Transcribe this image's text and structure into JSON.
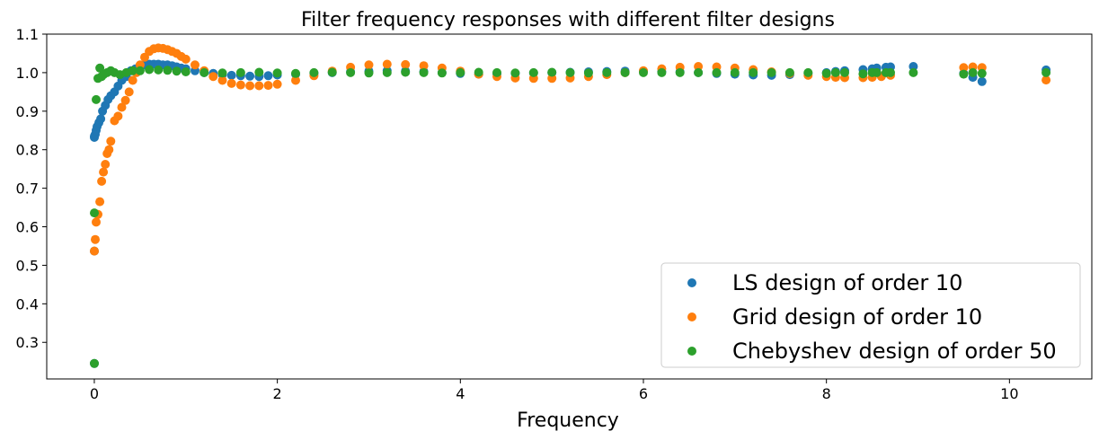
{
  "chart_data": {
    "type": "scatter",
    "title": "Filter frequency responses with different filter designs",
    "xlabel": "Frequency",
    "ylabel": "",
    "xlim": [
      -0.52,
      10.9
    ],
    "ylim": [
      0.205,
      1.1
    ],
    "xticks": [
      0,
      2,
      4,
      6,
      8,
      10
    ],
    "yticks": [
      0.3,
      0.4,
      0.5,
      0.6,
      0.7,
      0.8,
      0.9,
      1.0,
      1.1
    ],
    "xtick_labels": [
      "0",
      "2",
      "4",
      "6",
      "8",
      "10"
    ],
    "ytick_labels": [
      "0.3",
      "0.4",
      "0.5",
      "0.6",
      "0.7",
      "0.8",
      "0.9",
      "1.0",
      "1.1"
    ],
    "grid": false,
    "legend_position": "lower-right",
    "series": [
      {
        "name": "LS design of order 10",
        "color": "#1f77b4",
        "x": [
          0,
          0,
          0,
          0,
          0.01,
          0.02,
          0.03,
          0.05,
          0.07,
          0.09,
          0.12,
          0.15,
          0.18,
          0.22,
          0.26,
          0.3,
          0.35,
          0.4,
          0.45,
          0.5,
          0.55,
          0.6,
          0.65,
          0.7,
          0.75,
          0.8,
          0.85,
          0.9,
          0.95,
          1.0,
          1.1,
          1.2,
          1.3,
          1.4,
          1.5,
          1.6,
          1.7,
          1.8,
          1.9,
          2.0,
          2.2,
          2.4,
          2.6,
          2.8,
          3.0,
          3.2,
          3.4,
          3.6,
          3.8,
          4.0,
          4.2,
          4.4,
          4.6,
          4.8,
          5.0,
          5.2,
          5.4,
          5.6,
          5.8,
          6.0,
          6.2,
          6.4,
          6.6,
          6.8,
          7.0,
          7.2,
          7.4,
          7.6,
          7.8,
          8.0,
          8.1,
          8.2,
          8.4,
          8.5,
          8.55,
          8.65,
          8.7,
          8.95,
          9.5,
          9.6,
          9.7,
          10.4
        ],
        "y": [
          0.245,
          0.537,
          0.832,
          0.835,
          0.84,
          0.85,
          0.86,
          0.87,
          0.88,
          0.9,
          0.915,
          0.93,
          0.94,
          0.95,
          0.965,
          0.98,
          0.99,
          1.005,
          1.01,
          1.015,
          1.02,
          1.022,
          1.022,
          1.022,
          1.02,
          1.02,
          1.018,
          1.015,
          1.012,
          1.01,
          1.005,
          1.0,
          0.998,
          0.995,
          0.993,
          0.992,
          0.991,
          0.99,
          0.992,
          0.994,
          0.996,
          0.998,
          1.0,
          1.002,
          1.004,
          1.005,
          1.004,
          1.003,
          1.0,
          0.998,
          0.996,
          0.997,
          0.998,
          0.999,
          1.0,
          1.001,
          1.002,
          1.003,
          1.004,
          1.004,
          1.003,
          1.002,
          1.0,
          0.998,
          0.996,
          0.994,
          0.993,
          0.995,
          0.998,
          1.0,
          1.003,
          1.005,
          1.008,
          1.01,
          1.012,
          1.014,
          1.015,
          1.016,
          0.998,
          0.988,
          0.977,
          1.007
        ]
      },
      {
        "name": "Grid design of order 10",
        "color": "#ff7f0e",
        "x": [
          0,
          0.01,
          0.02,
          0.04,
          0.06,
          0.08,
          0.1,
          0.12,
          0.14,
          0.16,
          0.18,
          0.22,
          0.26,
          0.3,
          0.34,
          0.38,
          0.42,
          0.46,
          0.5,
          0.55,
          0.6,
          0.65,
          0.7,
          0.75,
          0.8,
          0.85,
          0.9,
          0.95,
          1.0,
          1.1,
          1.2,
          1.3,
          1.4,
          1.5,
          1.6,
          1.7,
          1.8,
          1.9,
          2.0,
          2.2,
          2.4,
          2.6,
          2.8,
          3.0,
          3.2,
          3.4,
          3.6,
          3.8,
          4.0,
          4.2,
          4.4,
          4.6,
          4.8,
          5.0,
          5.2,
          5.4,
          5.6,
          5.8,
          6.0,
          6.2,
          6.4,
          6.6,
          6.8,
          7.0,
          7.2,
          7.4,
          7.6,
          7.8,
          8.0,
          8.1,
          8.2,
          8.4,
          8.5,
          8.6,
          8.7,
          9.5,
          9.6,
          9.7,
          10.4
        ],
        "y": [
          0.537,
          0.567,
          0.612,
          0.632,
          0.665,
          0.718,
          0.742,
          0.762,
          0.79,
          0.8,
          0.822,
          0.875,
          0.887,
          0.91,
          0.928,
          0.95,
          0.98,
          1.0,
          1.02,
          1.04,
          1.055,
          1.062,
          1.064,
          1.063,
          1.06,
          1.055,
          1.05,
          1.042,
          1.035,
          1.02,
          1.005,
          0.99,
          0.98,
          0.972,
          0.968,
          0.966,
          0.966,
          0.967,
          0.97,
          0.98,
          0.992,
          1.004,
          1.014,
          1.02,
          1.022,
          1.021,
          1.018,
          1.012,
          1.004,
          0.996,
          0.99,
          0.986,
          0.985,
          0.985,
          0.986,
          0.99,
          0.995,
          1.0,
          1.005,
          1.01,
          1.014,
          1.016,
          1.015,
          1.012,
          1.008,
          1.002,
          0.998,
          0.993,
          0.99,
          0.988,
          0.987,
          0.987,
          0.988,
          0.99,
          0.993,
          1.013,
          1.015,
          1.013,
          0.981
        ]
      },
      {
        "name": "Chebyshev design of order 50",
        "color": "#2ca02c",
        "x": [
          0,
          0,
          0.02,
          0.04,
          0.06,
          0.08,
          0.1,
          0.14,
          0.18,
          0.22,
          0.28,
          0.35,
          0.42,
          0.5,
          0.6,
          0.7,
          0.8,
          0.9,
          1.0,
          1.2,
          1.4,
          1.6,
          1.8,
          2.0,
          2.2,
          2.4,
          2.6,
          2.8,
          3.0,
          3.2,
          3.4,
          3.6,
          3.8,
          4.0,
          4.2,
          4.4,
          4.6,
          4.8,
          5.0,
          5.2,
          5.4,
          5.6,
          5.8,
          6.0,
          6.2,
          6.4,
          6.6,
          6.8,
          7.0,
          7.2,
          7.4,
          7.6,
          7.8,
          8.0,
          8.1,
          8.2,
          8.4,
          8.5,
          8.55,
          8.65,
          8.7,
          8.95,
          9.5,
          9.6,
          9.7,
          10.4
        ],
        "y": [
          0.245,
          0.636,
          0.93,
          0.985,
          1.012,
          0.99,
          0.995,
          1.0,
          1.005,
          1.0,
          0.995,
          1.0,
          1.005,
          1.005,
          1.008,
          1.007,
          1.006,
          1.004,
          1.002,
          1.0,
          0.999,
          1.0,
          1.001,
          0.999,
          0.998,
          1.0,
          1.001,
          1.0,
          0.999,
          1.0,
          1.001,
          1.0,
          0.999,
          1.0,
          1.001,
          1.0,
          0.999,
          1.0,
          1.001,
          1.0,
          0.999,
          1.0,
          1.0,
          1.0,
          1.0,
          1.0,
          1.0,
          1.0,
          1.0,
          1.0,
          1.0,
          1.0,
          1.0,
          0.998,
          1.0,
          1.0,
          0.997,
          1.0,
          1.0,
          1.0,
          1.0,
          1.0,
          0.996,
          1.0,
          0.998,
          1.0
        ]
      }
    ]
  }
}
